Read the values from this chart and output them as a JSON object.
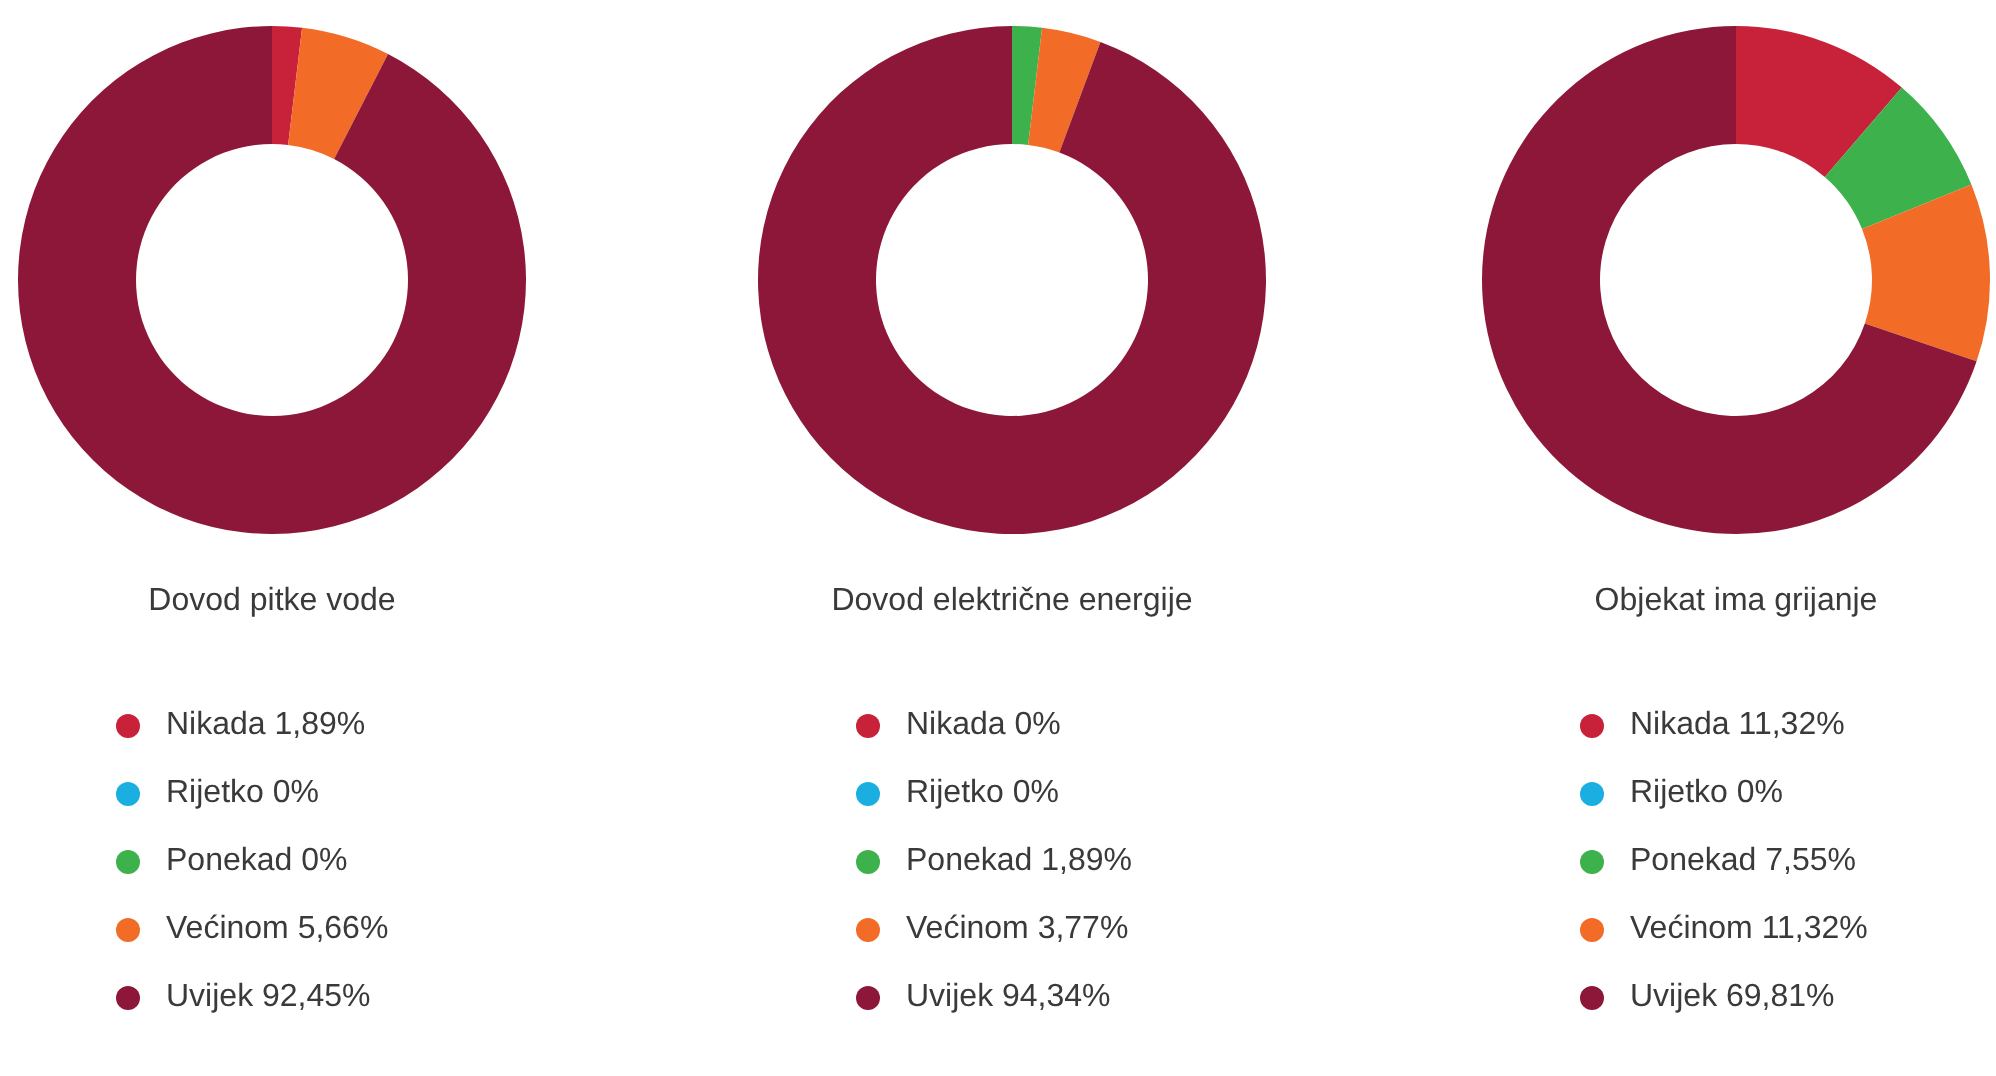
{
  "chart_data": [
    {
      "type": "donut",
      "title": "Dovod pitke vode",
      "categories": [
        "Nikada",
        "Rijetko",
        "Ponekad",
        "Većinom",
        "Uvijek"
      ],
      "values": [
        1.89,
        0,
        0,
        5.66,
        92.45
      ],
      "value_labels": [
        "1,89%",
        "0%",
        "0%",
        "5,66%",
        "92,45%"
      ],
      "colors": [
        "#c8213a",
        "#1aafe0",
        "#3db14b",
        "#f26c27",
        "#8c1738"
      ],
      "legend": "bottom"
    },
    {
      "type": "donut",
      "title": "Dovod električne energije",
      "categories": [
        "Nikada",
        "Rijetko",
        "Ponekad",
        "Većinom",
        "Uvijek"
      ],
      "values": [
        0,
        0,
        1.89,
        3.77,
        94.34
      ],
      "value_labels": [
        "0%",
        "0%",
        "1,89%",
        "3,77%",
        "94,34%"
      ],
      "colors": [
        "#c8213a",
        "#1aafe0",
        "#3db14b",
        "#f26c27",
        "#8c1738"
      ],
      "legend": "bottom"
    },
    {
      "type": "donut",
      "title": "Objekat ima grijanje",
      "categories": [
        "Nikada",
        "Rijetko",
        "Ponekad",
        "Većinom",
        "Uvijek"
      ],
      "values": [
        11.32,
        0,
        7.55,
        11.32,
        69.81
      ],
      "value_labels": [
        "11,32%",
        "0%",
        "7,55%",
        "11,32%",
        "69,81%"
      ],
      "colors": [
        "#c8213a",
        "#1aafe0",
        "#3db14b",
        "#f26c27",
        "#8c1738"
      ],
      "legend": "bottom"
    }
  ]
}
